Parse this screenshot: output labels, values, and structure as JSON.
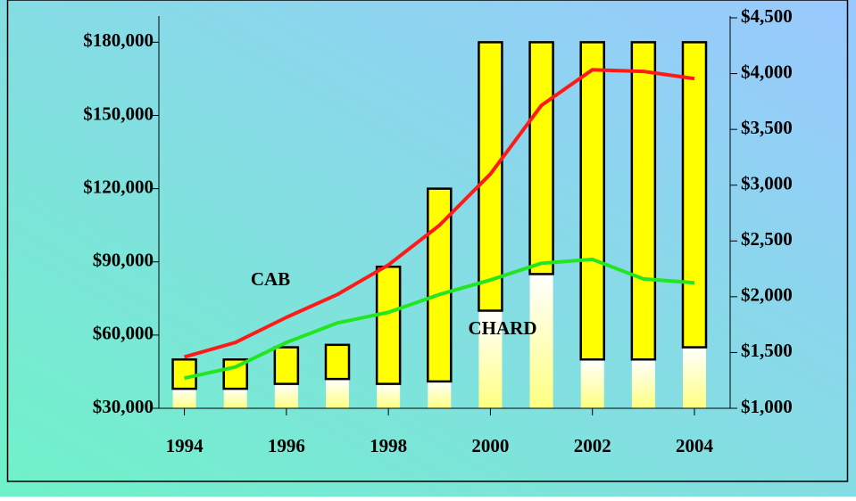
{
  "chart_data": {
    "type": "floating-bar-line",
    "x": [
      1994,
      1995,
      1996,
      1997,
      1998,
      1999,
      2000,
      2001,
      2002,
      2003,
      2004
    ],
    "xlim": [
      1993.5,
      2004.7
    ],
    "xticks": [
      1994,
      1996,
      1998,
      2000,
      2002,
      2004
    ],
    "bars": {
      "color": "#ffff00",
      "low": [
        38000,
        38000,
        40000,
        42000,
        40000,
        41000,
        70000,
        85000,
        50000,
        50000,
        55000
      ],
      "high": [
        50000,
        50000,
        55000,
        56000,
        88000,
        120000,
        180000,
        180000,
        180000,
        180000,
        180000
      ]
    },
    "ylim": [
      30000,
      190000
    ],
    "yticks": [
      {
        "value": 30000,
        "label": "$30,000"
      },
      {
        "value": 60000,
        "label": "$60,000"
      },
      {
        "value": 90000,
        "label": "$90,000"
      },
      {
        "value": 120000,
        "label": "$120,000"
      },
      {
        "value": 150000,
        "label": "$150,000"
      },
      {
        "value": 180000,
        "label": "$180,000"
      }
    ],
    "y2lim": [
      1000,
      4500
    ],
    "y2ticks": [
      {
        "value": 1000,
        "label": "$1,000"
      },
      {
        "value": 1500,
        "label": "$1,500"
      },
      {
        "value": 2000,
        "label": "$2,000"
      },
      {
        "value": 2500,
        "label": "$2,500"
      },
      {
        "value": 3000,
        "label": "$3,000"
      },
      {
        "value": 3500,
        "label": "$3,500"
      },
      {
        "value": 4000,
        "label": "$4,000"
      },
      {
        "value": 4500,
        "label": "$4,500"
      }
    ],
    "series": [
      {
        "name": "CAB",
        "color": "#ff1a1a",
        "axis": "y2",
        "values": [
          1460,
          1590,
          1815,
          2020,
          2285,
          2640,
          3100,
          3715,
          4035,
          4020,
          3955
        ]
      },
      {
        "name": "CHARD",
        "color": "#22e622",
        "axis": "y2",
        "values": [
          1270,
          1370,
          1590,
          1765,
          1860,
          2020,
          2150,
          2300,
          2335,
          2160,
          2125
        ]
      }
    ]
  }
}
